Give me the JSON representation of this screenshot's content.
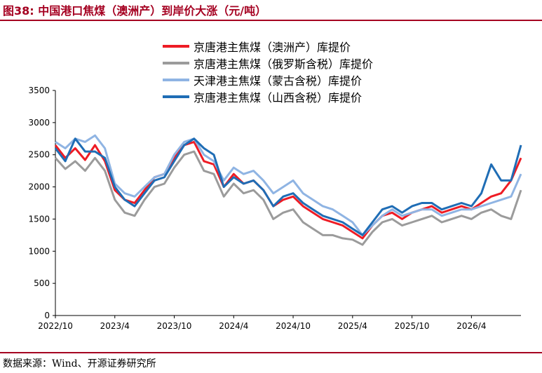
{
  "header": {
    "title": "图38:  中国港口焦煤（澳洲产）到岸价大涨（元/吨）"
  },
  "footer": {
    "source": "数据来源：Wind、开源证券研究所"
  },
  "colors": {
    "accent": "#a50021"
  },
  "chart_data": {
    "type": "line",
    "title": "",
    "xlabel": "",
    "ylabel": "",
    "ylim": [
      0,
      3500
    ],
    "y_ticks": [
      0,
      500,
      1000,
      1500,
      2000,
      2500,
      3000,
      3500
    ],
    "x_range": [
      "2022-10",
      "2026-09"
    ],
    "x_ticks": [
      "2022/10",
      "2023/4",
      "2023/10",
      "2024/4",
      "2024/10",
      "2025/4",
      "2025/10",
      "2026/4"
    ],
    "grid": false,
    "legend_position": "top-center",
    "series": [
      {
        "name": "京唐港主焦煤（澳洲产）库提价",
        "color": "#ee1c25",
        "points": [
          [
            "2022-10",
            2650
          ],
          [
            "2022-11",
            2450
          ],
          [
            "2022-12",
            2600
          ],
          [
            "2023-01",
            2420
          ],
          [
            "2023-02",
            2650
          ],
          [
            "2023-03",
            2400
          ],
          [
            "2023-04",
            1950
          ],
          [
            "2023-05",
            1800
          ],
          [
            "2023-06",
            1750
          ],
          [
            "2023-07",
            1950
          ],
          [
            "2023-08",
            2150
          ],
          [
            "2023-09",
            2200
          ],
          [
            "2023-10",
            2450
          ],
          [
            "2023-11",
            2650
          ],
          [
            "2023-12",
            2700
          ],
          [
            "2024-01",
            2400
          ],
          [
            "2024-02",
            2350
          ],
          [
            "2024-03",
            2000
          ],
          [
            "2024-04",
            2200
          ],
          [
            "2024-05",
            2050
          ],
          [
            "2024-06",
            2100
          ],
          [
            "2024-07",
            1950
          ],
          [
            "2024-08",
            1700
          ],
          [
            "2024-09",
            1800
          ],
          [
            "2024-10",
            1850
          ],
          [
            "2024-11",
            1700
          ],
          [
            "2024-12",
            1600
          ],
          [
            "2025-01",
            1500
          ],
          [
            "2025-02",
            1450
          ],
          [
            "2025-03",
            1400
          ],
          [
            "2025-04",
            1300
          ],
          [
            "2025-05",
            1200
          ],
          [
            "2025-06",
            1400
          ],
          [
            "2025-07",
            1550
          ],
          [
            "2025-08",
            1600
          ],
          [
            "2025-09",
            1500
          ],
          [
            "2025-10",
            1600
          ],
          [
            "2025-11",
            1650
          ],
          [
            "2025-12",
            1700
          ],
          [
            "2026-01",
            1600
          ],
          [
            "2026-02",
            1650
          ],
          [
            "2026-03",
            1700
          ],
          [
            "2026-04",
            1650
          ],
          [
            "2026-05",
            1750
          ],
          [
            "2026-06",
            1850
          ],
          [
            "2026-07",
            1900
          ],
          [
            "2026-08",
            2100
          ],
          [
            "2026-09",
            2450
          ]
        ]
      },
      {
        "name": "京唐港主焦煤（俄罗斯含税）库提价",
        "color": "#9b9b9b",
        "points": [
          [
            "2022-10",
            2450
          ],
          [
            "2022-11",
            2280
          ],
          [
            "2022-12",
            2400
          ],
          [
            "2023-01",
            2250
          ],
          [
            "2023-02",
            2450
          ],
          [
            "2023-03",
            2250
          ],
          [
            "2023-04",
            1800
          ],
          [
            "2023-05",
            1600
          ],
          [
            "2023-06",
            1550
          ],
          [
            "2023-07",
            1800
          ],
          [
            "2023-08",
            2000
          ],
          [
            "2023-09",
            2050
          ],
          [
            "2023-10",
            2300
          ],
          [
            "2023-11",
            2500
          ],
          [
            "2023-12",
            2550
          ],
          [
            "2024-01",
            2250
          ],
          [
            "2024-02",
            2200
          ],
          [
            "2024-03",
            1850
          ],
          [
            "2024-04",
            2050
          ],
          [
            "2024-05",
            1900
          ],
          [
            "2024-06",
            1950
          ],
          [
            "2024-07",
            1800
          ],
          [
            "2024-08",
            1500
          ],
          [
            "2024-09",
            1600
          ],
          [
            "2024-10",
            1650
          ],
          [
            "2024-11",
            1450
          ],
          [
            "2024-12",
            1350
          ],
          [
            "2025-01",
            1250
          ],
          [
            "2025-02",
            1250
          ],
          [
            "2025-03",
            1200
          ],
          [
            "2025-04",
            1180
          ],
          [
            "2025-05",
            1100
          ],
          [
            "2025-06",
            1300
          ],
          [
            "2025-07",
            1450
          ],
          [
            "2025-08",
            1500
          ],
          [
            "2025-09",
            1400
          ],
          [
            "2025-10",
            1450
          ],
          [
            "2025-11",
            1500
          ],
          [
            "2025-12",
            1550
          ],
          [
            "2026-01",
            1450
          ],
          [
            "2026-02",
            1500
          ],
          [
            "2026-03",
            1550
          ],
          [
            "2026-04",
            1500
          ],
          [
            "2026-05",
            1600
          ],
          [
            "2026-06",
            1650
          ],
          [
            "2026-07",
            1550
          ],
          [
            "2026-08",
            1500
          ],
          [
            "2026-09",
            1950
          ]
        ]
      },
      {
        "name": "天津港主焦煤（蒙古含税）库提价",
        "color": "#8fb4e3",
        "points": [
          [
            "2022-10",
            2700
          ],
          [
            "2022-11",
            2600
          ],
          [
            "2022-12",
            2750
          ],
          [
            "2023-01",
            2700
          ],
          [
            "2023-02",
            2800
          ],
          [
            "2023-03",
            2600
          ],
          [
            "2023-04",
            2050
          ],
          [
            "2023-05",
            1900
          ],
          [
            "2023-06",
            1850
          ],
          [
            "2023-07",
            2000
          ],
          [
            "2023-08",
            2150
          ],
          [
            "2023-09",
            2200
          ],
          [
            "2023-10",
            2500
          ],
          [
            "2023-11",
            2700
          ],
          [
            "2023-12",
            2750
          ],
          [
            "2024-01",
            2500
          ],
          [
            "2024-02",
            2400
          ],
          [
            "2024-03",
            2100
          ],
          [
            "2024-04",
            2300
          ],
          [
            "2024-05",
            2200
          ],
          [
            "2024-06",
            2250
          ],
          [
            "2024-07",
            2100
          ],
          [
            "2024-08",
            1900
          ],
          [
            "2024-09",
            2000
          ],
          [
            "2024-10",
            2100
          ],
          [
            "2024-11",
            1900
          ],
          [
            "2024-12",
            1800
          ],
          [
            "2025-01",
            1700
          ],
          [
            "2025-02",
            1650
          ],
          [
            "2025-03",
            1550
          ],
          [
            "2025-04",
            1450
          ],
          [
            "2025-05",
            1250
          ],
          [
            "2025-06",
            1400
          ],
          [
            "2025-07",
            1550
          ],
          [
            "2025-08",
            1650
          ],
          [
            "2025-09",
            1550
          ],
          [
            "2025-10",
            1600
          ],
          [
            "2025-11",
            1650
          ],
          [
            "2025-12",
            1650
          ],
          [
            "2026-01",
            1550
          ],
          [
            "2026-02",
            1600
          ],
          [
            "2026-03",
            1650
          ],
          [
            "2026-04",
            1650
          ],
          [
            "2026-05",
            1700
          ],
          [
            "2026-06",
            1750
          ],
          [
            "2026-07",
            1800
          ],
          [
            "2026-08",
            1850
          ],
          [
            "2026-09",
            2200
          ]
        ]
      },
      {
        "name": "京唐港主焦煤（山西含税）库提价",
        "color": "#1f6db5",
        "points": [
          [
            "2022-10",
            2600
          ],
          [
            "2022-11",
            2400
          ],
          [
            "2022-12",
            2750
          ],
          [
            "2023-01",
            2550
          ],
          [
            "2023-02",
            2550
          ],
          [
            "2023-03",
            2450
          ],
          [
            "2023-04",
            2000
          ],
          [
            "2023-05",
            1800
          ],
          [
            "2023-06",
            1700
          ],
          [
            "2023-07",
            1900
          ],
          [
            "2023-08",
            2100
          ],
          [
            "2023-09",
            2150
          ],
          [
            "2023-10",
            2400
          ],
          [
            "2023-11",
            2650
          ],
          [
            "2023-12",
            2750
          ],
          [
            "2024-01",
            2600
          ],
          [
            "2024-02",
            2500
          ],
          [
            "2024-03",
            2000
          ],
          [
            "2024-04",
            2150
          ],
          [
            "2024-05",
            2050
          ],
          [
            "2024-06",
            2100
          ],
          [
            "2024-07",
            1950
          ],
          [
            "2024-08",
            1700
          ],
          [
            "2024-09",
            1850
          ],
          [
            "2024-10",
            1900
          ],
          [
            "2024-11",
            1750
          ],
          [
            "2024-12",
            1650
          ],
          [
            "2025-01",
            1550
          ],
          [
            "2025-02",
            1500
          ],
          [
            "2025-03",
            1450
          ],
          [
            "2025-04",
            1350
          ],
          [
            "2025-05",
            1250
          ],
          [
            "2025-06",
            1450
          ],
          [
            "2025-07",
            1650
          ],
          [
            "2025-08",
            1700
          ],
          [
            "2025-09",
            1600
          ],
          [
            "2025-10",
            1700
          ],
          [
            "2025-11",
            1750
          ],
          [
            "2025-12",
            1750
          ],
          [
            "2026-01",
            1650
          ],
          [
            "2026-02",
            1700
          ],
          [
            "2026-03",
            1750
          ],
          [
            "2026-04",
            1700
          ],
          [
            "2026-05",
            1900
          ],
          [
            "2026-06",
            2350
          ],
          [
            "2026-07",
            2100
          ],
          [
            "2026-08",
            2100
          ],
          [
            "2026-09",
            2650
          ]
        ]
      }
    ]
  }
}
